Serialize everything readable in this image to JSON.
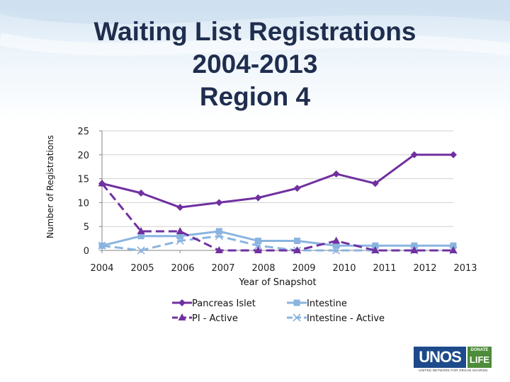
{
  "title_lines": [
    "Waiting List Registrations",
    "2004-2013",
    "Region 4"
  ],
  "logo": {
    "main": "UNOS",
    "badge_top": "DONATE",
    "badge_bottom": "LIFE",
    "subtitle": "UNITED NETWORK FOR ORGAN SHARING"
  },
  "colors": {
    "pancreas": "#7030a0",
    "intestine": "#8ab4e0",
    "title": "#1f2d4e"
  },
  "chart_data": {
    "type": "line",
    "xlabel": "Year of Snapshot",
    "ylabel": "Number of Registrations",
    "categories": [
      "2004",
      "2005",
      "2006",
      "2007",
      "2008",
      "2009",
      "2010",
      "2011",
      "2012",
      "2013"
    ],
    "ylim": [
      0,
      25
    ],
    "yticks": [
      0,
      5,
      10,
      15,
      20,
      25
    ],
    "grid": true,
    "legend": "bottom",
    "series": [
      {
        "name": "Pancreas Islet",
        "values": [
          14,
          12,
          9,
          10,
          11,
          13,
          16,
          14,
          20,
          20
        ],
        "marker": "diamond",
        "dash": "solid",
        "color": "#7030a0"
      },
      {
        "name": "Intestine",
        "values": [
          1,
          3,
          3,
          4,
          2,
          2,
          1,
          1,
          1,
          1
        ],
        "marker": "square",
        "dash": "solid",
        "color": "#8ab4e0"
      },
      {
        "name": "PI - Active",
        "values": [
          14,
          4,
          4,
          0,
          0,
          0,
          2,
          0,
          0,
          0
        ],
        "marker": "triangle",
        "dash": "dashed",
        "color": "#7030a0"
      },
      {
        "name": "Intestine - Active",
        "values": [
          1,
          0,
          2,
          3,
          1,
          0,
          0,
          0,
          0,
          0
        ],
        "marker": "x",
        "dash": "dashed",
        "color": "#8ab4e0"
      }
    ]
  }
}
